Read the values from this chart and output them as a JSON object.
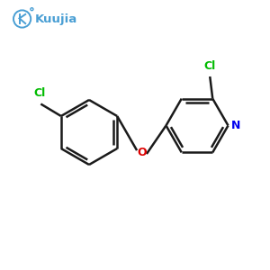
{
  "bg_color": "#ffffff",
  "bond_color": "#1a1a1a",
  "bond_width": 1.8,
  "N_color": "#0000EE",
  "O_color": "#DD0000",
  "Cl_color": "#00BB00",
  "logo_color": "#4A9FD4",
  "logo_text": "Kuujia",
  "figsize": [
    3.0,
    3.0
  ],
  "dpi": 100,
  "xlim": [
    0,
    10
  ],
  "ylim": [
    0,
    10
  ]
}
